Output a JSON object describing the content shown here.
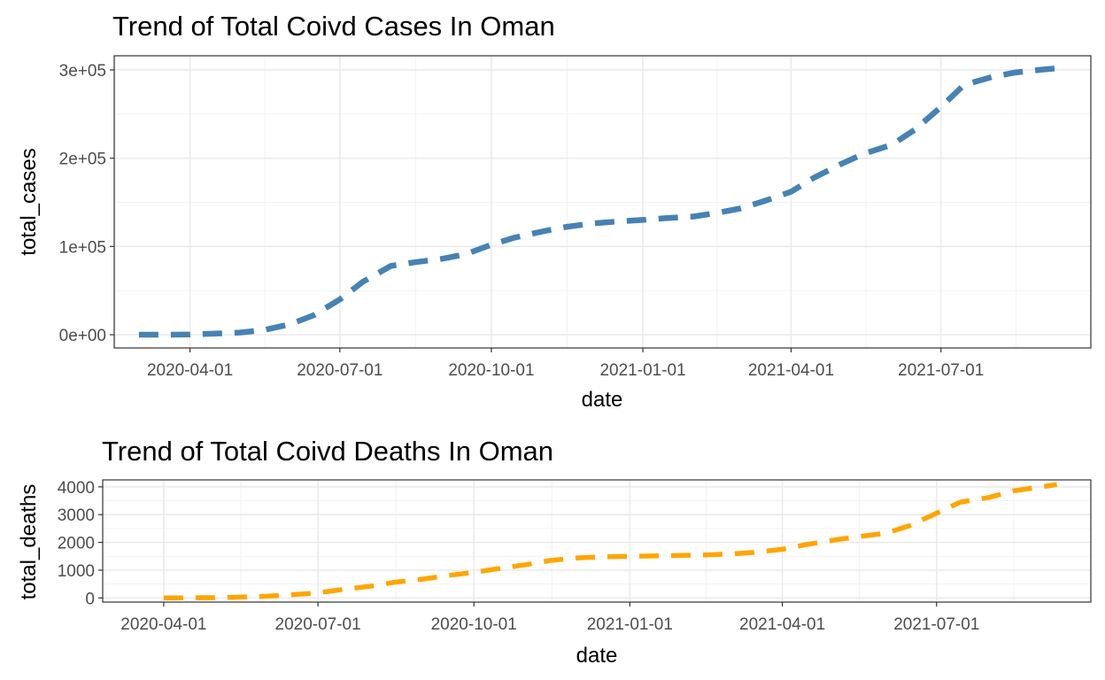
{
  "chart_data": [
    {
      "type": "line",
      "title": "Trend of Total Coivd Cases In Oman",
      "xlabel": "date",
      "ylabel": "total_cases",
      "xlim": [
        "2020-02-15",
        "2021-09-30"
      ],
      "ylim": [
        -15000,
        316000
      ],
      "x_ticks": [
        "2020-04-01",
        "2020-07-01",
        "2020-10-01",
        "2021-01-01",
        "2021-04-01",
        "2021-07-01"
      ],
      "y_ticks": [
        0,
        100000,
        200000,
        300000
      ],
      "y_tick_labels": [
        "0e+00",
        "1e+05",
        "2e+05",
        "3e+05"
      ],
      "grid": true,
      "legend": "none",
      "line_style": "dashed",
      "color": "#4682B4",
      "series": [
        {
          "points": [
            [
              "2020-03-01",
              0
            ],
            [
              "2020-03-20",
              50
            ],
            [
              "2020-04-01",
              200
            ],
            [
              "2020-04-20",
              1500
            ],
            [
              "2020-05-01",
              2500
            ],
            [
              "2020-05-15",
              5000
            ],
            [
              "2020-06-01",
              12000
            ],
            [
              "2020-06-15",
              22000
            ],
            [
              "2020-07-01",
              40000
            ],
            [
              "2020-07-15",
              60000
            ],
            [
              "2020-08-01",
              78000
            ],
            [
              "2020-08-15",
              82000
            ],
            [
              "2020-09-01",
              86000
            ],
            [
              "2020-09-15",
              91000
            ],
            [
              "2020-10-01",
              102000
            ],
            [
              "2020-10-15",
              110000
            ],
            [
              "2020-11-01",
              117000
            ],
            [
              "2020-11-15",
              122000
            ],
            [
              "2020-12-01",
              126000
            ],
            [
              "2020-12-15",
              128000
            ],
            [
              "2021-01-01",
              130000
            ],
            [
              "2021-01-15",
              132000
            ],
            [
              "2021-02-01",
              134000
            ],
            [
              "2021-02-15",
              138000
            ],
            [
              "2021-03-01",
              143000
            ],
            [
              "2021-03-15",
              151000
            ],
            [
              "2021-04-01",
              162000
            ],
            [
              "2021-04-15",
              178000
            ],
            [
              "2021-05-01",
              193000
            ],
            [
              "2021-05-15",
              205000
            ],
            [
              "2021-06-01",
              215000
            ],
            [
              "2021-06-15",
              232000
            ],
            [
              "2021-07-01",
              258000
            ],
            [
              "2021-07-15",
              283000
            ],
            [
              "2021-08-01",
              292000
            ],
            [
              "2021-08-15",
              297000
            ],
            [
              "2021-09-01",
              300500
            ],
            [
              "2021-09-10",
              302000
            ]
          ]
        }
      ]
    },
    {
      "type": "line",
      "title": "Trend of Total Coivd Deaths In Oman",
      "xlabel": "date",
      "ylabel": "total_deaths",
      "xlim": [
        "2020-02-25",
        "2021-09-30"
      ],
      "ylim": [
        -150,
        4250
      ],
      "x_ticks": [
        "2020-04-01",
        "2020-07-01",
        "2020-10-01",
        "2021-01-01",
        "2021-04-01",
        "2021-07-01"
      ],
      "y_ticks": [
        0,
        1000,
        2000,
        3000,
        4000
      ],
      "y_tick_labels": [
        "0",
        "1000",
        "2000",
        "3000",
        "4000"
      ],
      "grid": true,
      "legend": "none",
      "line_style": "dashed",
      "color": "#FFA500",
      "series": [
        {
          "points": [
            [
              "2020-04-01",
              0
            ],
            [
              "2020-04-15",
              2
            ],
            [
              "2020-05-01",
              10
            ],
            [
              "2020-05-15",
              25
            ],
            [
              "2020-06-01",
              60
            ],
            [
              "2020-06-15",
              110
            ],
            [
              "2020-07-01",
              180
            ],
            [
              "2020-07-15",
              300
            ],
            [
              "2020-08-01",
              420
            ],
            [
              "2020-08-15",
              560
            ],
            [
              "2020-09-01",
              680
            ],
            [
              "2020-09-15",
              800
            ],
            [
              "2020-10-01",
              920
            ],
            [
              "2020-10-15",
              1050
            ],
            [
              "2020-11-01",
              1200
            ],
            [
              "2020-11-15",
              1350
            ],
            [
              "2020-12-01",
              1440
            ],
            [
              "2020-12-15",
              1480
            ],
            [
              "2021-01-01",
              1500
            ],
            [
              "2021-01-15",
              1510
            ],
            [
              "2021-02-01",
              1530
            ],
            [
              "2021-02-15",
              1550
            ],
            [
              "2021-03-01",
              1580
            ],
            [
              "2021-03-15",
              1640
            ],
            [
              "2021-04-01",
              1750
            ],
            [
              "2021-04-15",
              1920
            ],
            [
              "2021-05-01",
              2080
            ],
            [
              "2021-05-15",
              2200
            ],
            [
              "2021-06-01",
              2330
            ],
            [
              "2021-06-15",
              2600
            ],
            [
              "2021-07-01",
              3050
            ],
            [
              "2021-07-15",
              3450
            ],
            [
              "2021-08-01",
              3620
            ],
            [
              "2021-08-15",
              3850
            ],
            [
              "2021-09-01",
              4000
            ],
            [
              "2021-09-10",
              4080
            ]
          ]
        }
      ]
    }
  ]
}
